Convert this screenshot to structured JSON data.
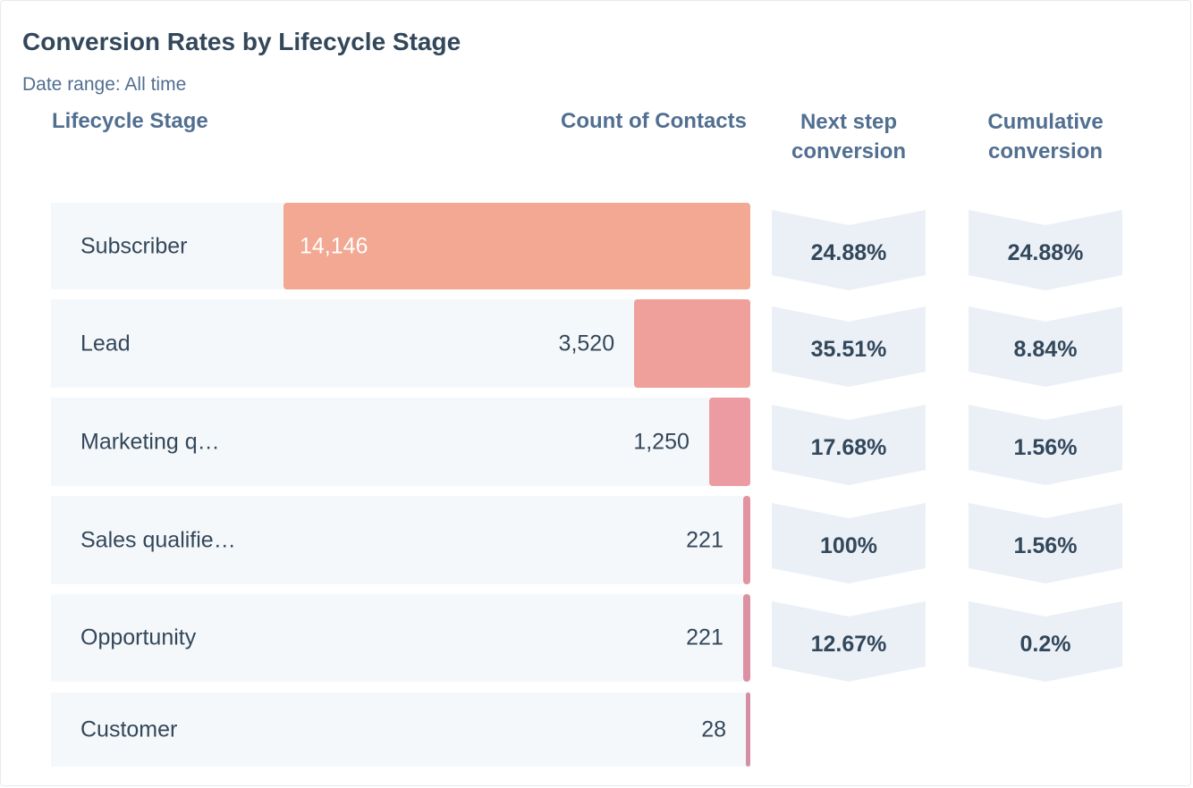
{
  "chart_data": {
    "type": "bar",
    "title": "Conversion Rates by Lifecycle Stage",
    "subtitle": "Date range: All time",
    "columns": [
      "Lifecycle Stage",
      "Count of Contacts",
      "Next step conversion",
      "Cumulative conversion"
    ],
    "categories": [
      "Subscriber",
      "Lead",
      "Marketing q…",
      "Sales qualifie…",
      "Opportunity",
      "Customer"
    ],
    "values": [
      14146,
      3520,
      1250,
      221,
      221,
      28
    ],
    "value_labels": [
      "14,146",
      "3,520",
      "1,250",
      "221",
      "221",
      "28"
    ],
    "next_step": [
      "24.88%",
      "35.51%",
      "17.68%",
      "100%",
      "12.67%"
    ],
    "cumulative": [
      "24.88%",
      "8.84%",
      "1.56%",
      "1.56%",
      "0.2%"
    ],
    "colors": [
      "#f2a892",
      "#f0a09a",
      "#ec9ba2",
      "#e3929f",
      "#dc90a2",
      "#d48ea6"
    ]
  }
}
